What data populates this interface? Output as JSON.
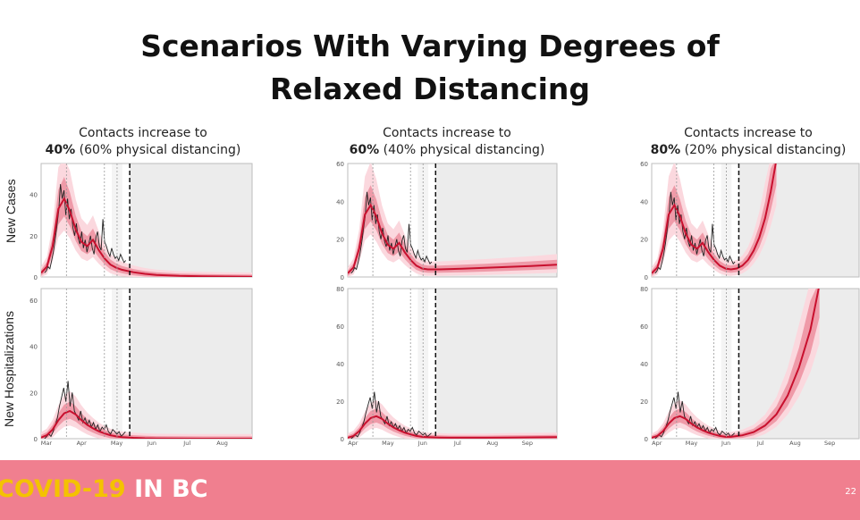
{
  "title_line1": "Scenarios With Varying Degrees of",
  "title_line2": "Relaxed Distancing",
  "panels": [
    {
      "line1": "Contacts increase to",
      "bold": "40%",
      "rest": " (60% physical distancing)"
    },
    {
      "line1": "Contacts increase to",
      "bold": "60%",
      "rest": " (40% physical distancing)"
    },
    {
      "line1": "Contacts increase to",
      "bold": "80%",
      "rest": " (20% physical distancing)"
    }
  ],
  "row_labels": {
    "cases": "New Cases",
    "hosp": "New Hospitalizations"
  },
  "footer": {
    "brand_a": "COVID-19",
    "brand_b": " IN BC",
    "page": "22"
  },
  "colors": {
    "model_line": "#c8102e",
    "band_inner": "#ef9aa8",
    "band_outer": "#fbd8de",
    "projection_shade": "#ececec",
    "footer_bg": "#f07f8f",
    "brand_yellow": "#f4c200"
  },
  "chart_data": [
    {
      "type": "line",
      "scenario": "40%",
      "months": [
        "Mar",
        "Apr",
        "May",
        "Jun",
        "Jul",
        "Aug"
      ],
      "cases": {
        "yticks": [
          0,
          20,
          40
        ],
        "ylim": [
          0,
          55
        ],
        "model_x_day": [
          0,
          5,
          10,
          15,
          20,
          25,
          30,
          35,
          40,
          45,
          50,
          55,
          60,
          65,
          70,
          80,
          90,
          100,
          120,
          140,
          160,
          183
        ],
        "model_y": [
          2,
          5,
          15,
          33,
          38,
          32,
          23,
          17,
          15,
          18,
          13,
          9,
          6,
          4.5,
          3.5,
          2.3,
          1.5,
          1,
          0.5,
          0.3,
          0.2,
          0.1
        ],
        "observed_y": [
          2,
          3,
          5,
          4,
          8,
          12,
          18,
          25,
          32,
          45,
          38,
          42,
          30,
          38,
          28,
          33,
          24,
          20,
          26,
          19,
          16,
          22,
          14,
          18,
          12,
          16,
          20,
          14,
          11,
          19,
          22,
          15,
          13,
          28,
          17,
          15,
          12,
          10,
          14,
          11,
          9,
          10,
          8,
          11,
          9,
          7,
          8
        ]
      },
      "hosp": {
        "yticks": [
          0,
          20,
          40,
          60
        ],
        "ylim": [
          0,
          65
        ],
        "model_x_day": [
          0,
          5,
          10,
          15,
          20,
          25,
          30,
          35,
          40,
          45,
          50,
          55,
          60,
          65,
          70,
          80,
          90,
          100,
          120,
          140,
          160,
          183
        ],
        "model_y": [
          0.5,
          1.5,
          4,
          8,
          11,
          12,
          10.5,
          8,
          6,
          4.5,
          3.2,
          2.3,
          1.5,
          1,
          0.7,
          0.4,
          0.2,
          0.1,
          0.05,
          0,
          0,
          0
        ],
        "observed_y": [
          0,
          1,
          2,
          1,
          3,
          6,
          9,
          14,
          18,
          22,
          16,
          25,
          14,
          20,
          12,
          10,
          8,
          12,
          7,
          9,
          6,
          8,
          5,
          7,
          4,
          6,
          3,
          5,
          4,
          6,
          3,
          2,
          4,
          3,
          2,
          3,
          1,
          2,
          3
        ]
      }
    },
    {
      "type": "line",
      "scenario": "60%",
      "months": [
        "Apr",
        "May",
        "Jun",
        "Jul",
        "Aug",
        "Sep"
      ],
      "cases": {
        "yticks": [
          0,
          20,
          40,
          60
        ],
        "ylim": [
          0,
          60
        ],
        "model_x_day": [
          0,
          5,
          10,
          15,
          20,
          25,
          30,
          35,
          40,
          45,
          50,
          55,
          60,
          65,
          70,
          80,
          90,
          100,
          120,
          140,
          160,
          183
        ],
        "model_y": [
          2,
          5,
          15,
          33,
          38,
          32,
          23,
          17,
          15,
          18,
          13,
          9,
          6,
          4.5,
          4,
          4,
          4.2,
          4.4,
          4.8,
          5.3,
          5.8,
          6.5
        ],
        "observed_y": [
          2,
          3,
          5,
          4,
          8,
          12,
          18,
          25,
          32,
          45,
          38,
          42,
          30,
          38,
          28,
          33,
          24,
          20,
          26,
          19,
          16,
          22,
          14,
          18,
          12,
          16,
          20,
          14,
          11,
          19,
          22,
          15,
          13,
          28,
          17,
          15,
          12,
          10,
          14,
          11,
          9,
          10,
          8,
          11,
          9,
          7,
          8
        ]
      },
      "hosp": {
        "yticks": [
          0,
          20,
          40,
          60,
          80
        ],
        "ylim": [
          0,
          80
        ],
        "model_x_day": [
          0,
          5,
          10,
          15,
          20,
          25,
          30,
          35,
          40,
          45,
          50,
          55,
          60,
          65,
          70,
          80,
          90,
          100,
          120,
          140,
          160,
          183
        ],
        "model_y": [
          0.5,
          1.5,
          4,
          8,
          11,
          12,
          10.5,
          8,
          6,
          4.5,
          3.2,
          2.3,
          1.5,
          1,
          0.8,
          0.6,
          0.5,
          0.5,
          0.5,
          0.6,
          0.7,
          0.8
        ],
        "observed_y": [
          0,
          1,
          2,
          1,
          3,
          6,
          9,
          14,
          18,
          22,
          16,
          25,
          14,
          20,
          12,
          10,
          8,
          12,
          7,
          9,
          6,
          8,
          5,
          7,
          4,
          6,
          3,
          5,
          4,
          6,
          3,
          2,
          4,
          3,
          2,
          3,
          1,
          2,
          3
        ]
      }
    },
    {
      "type": "line",
      "scenario": "80%",
      "months": [
        "Apr",
        "May",
        "Jun",
        "Jul",
        "Aug",
        "Sep"
      ],
      "cases": {
        "yticks": [
          0,
          20,
          40,
          60
        ],
        "ylim": [
          0,
          60
        ],
        "model_x_day": [
          0,
          5,
          10,
          15,
          20,
          25,
          30,
          35,
          40,
          45,
          50,
          55,
          60,
          65,
          70,
          75,
          80,
          85,
          90,
          95,
          100,
          105,
          110
        ],
        "model_y": [
          2,
          5,
          15,
          33,
          38,
          32,
          23,
          17,
          15,
          18,
          13,
          9,
          6,
          4.5,
          4,
          4.5,
          6,
          9,
          14,
          21,
          31,
          45,
          62
        ],
        "observed_y": [
          2,
          3,
          5,
          4,
          8,
          12,
          18,
          25,
          32,
          45,
          38,
          42,
          30,
          38,
          28,
          33,
          24,
          20,
          26,
          19,
          16,
          22,
          14,
          18,
          12,
          16,
          20,
          14,
          11,
          19,
          22,
          15,
          13,
          28,
          17,
          15,
          12,
          10,
          14,
          11,
          9,
          10,
          8,
          11,
          9,
          7,
          8
        ]
      },
      "hosp": {
        "yticks": [
          0,
          20,
          40,
          60,
          80
        ],
        "ylim": [
          0,
          80
        ],
        "model_x_day": [
          0,
          5,
          10,
          15,
          20,
          25,
          30,
          35,
          40,
          45,
          50,
          55,
          60,
          65,
          70,
          80,
          90,
          100,
          110,
          120,
          130,
          140,
          148
        ],
        "model_y": [
          0.5,
          1.5,
          4,
          8,
          11,
          12,
          10.5,
          8,
          6,
          4.5,
          3.2,
          2.3,
          1.5,
          1,
          1,
          1.8,
          3.5,
          7,
          13,
          23,
          38,
          58,
          82
        ],
        "observed_y": [
          0,
          1,
          2,
          1,
          3,
          6,
          9,
          14,
          18,
          22,
          16,
          25,
          14,
          20,
          12,
          10,
          8,
          12,
          7,
          9,
          6,
          8,
          5,
          7,
          4,
          6,
          3,
          5,
          4,
          6,
          3,
          2,
          4,
          3,
          2,
          3,
          1,
          2,
          3
        ]
      }
    }
  ]
}
